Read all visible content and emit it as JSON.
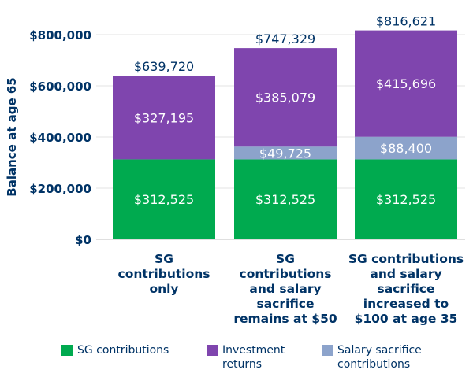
{
  "chart_data": {
    "type": "bar",
    "stacked": true,
    "ylabel": "Balance at age 65",
    "ylim": [
      0,
      800000
    ],
    "yticks": [
      {
        "value": 0,
        "label": "$0"
      },
      {
        "value": 200000,
        "label": "$200,000"
      },
      {
        "value": 400000,
        "label": "$400,000"
      },
      {
        "value": 600000,
        "label": "$600,000"
      },
      {
        "value": 800000,
        "label": "$800,000"
      }
    ],
    "categories": [
      [
        "SG",
        "contributions",
        "only"
      ],
      [
        "SG",
        "contributions",
        "and salary",
        "sacrifice",
        "remains at $50"
      ],
      [
        "SG contributions",
        "and salary",
        "sacrifice",
        "increased to",
        "$100 at age 35"
      ]
    ],
    "series": [
      {
        "name": "SG contributions",
        "color": "#00AA4F",
        "values": [
          312525,
          312525,
          312525
        ],
        "labels": [
          "$312,525",
          "$312,525",
          "$312,525"
        ]
      },
      {
        "name": "Salary sacrifice contributions",
        "color": "#8CA3CB",
        "values": [
          0,
          49725,
          88400
        ],
        "labels": [
          "",
          "$49,725",
          "$88,400"
        ]
      },
      {
        "name": "Investment returns",
        "color": "#7F45AE",
        "values": [
          327195,
          385079,
          415696
        ],
        "labels": [
          "$327,195",
          "$385,079",
          "$415,696"
        ]
      }
    ],
    "totals": [
      639720,
      747329,
      816621
    ],
    "total_labels": [
      "$639,720",
      "$747,329",
      "$816,621"
    ]
  },
  "legend": {
    "sg": "SG contributions",
    "investment": [
      "Investment",
      "returns"
    ],
    "salary": [
      "Salary sacrifice",
      "contributions"
    ]
  },
  "colors": {
    "sg": "#00AA4F",
    "investment": "#7F45AE",
    "salary": "#8CA3CB",
    "text": "#003366"
  }
}
